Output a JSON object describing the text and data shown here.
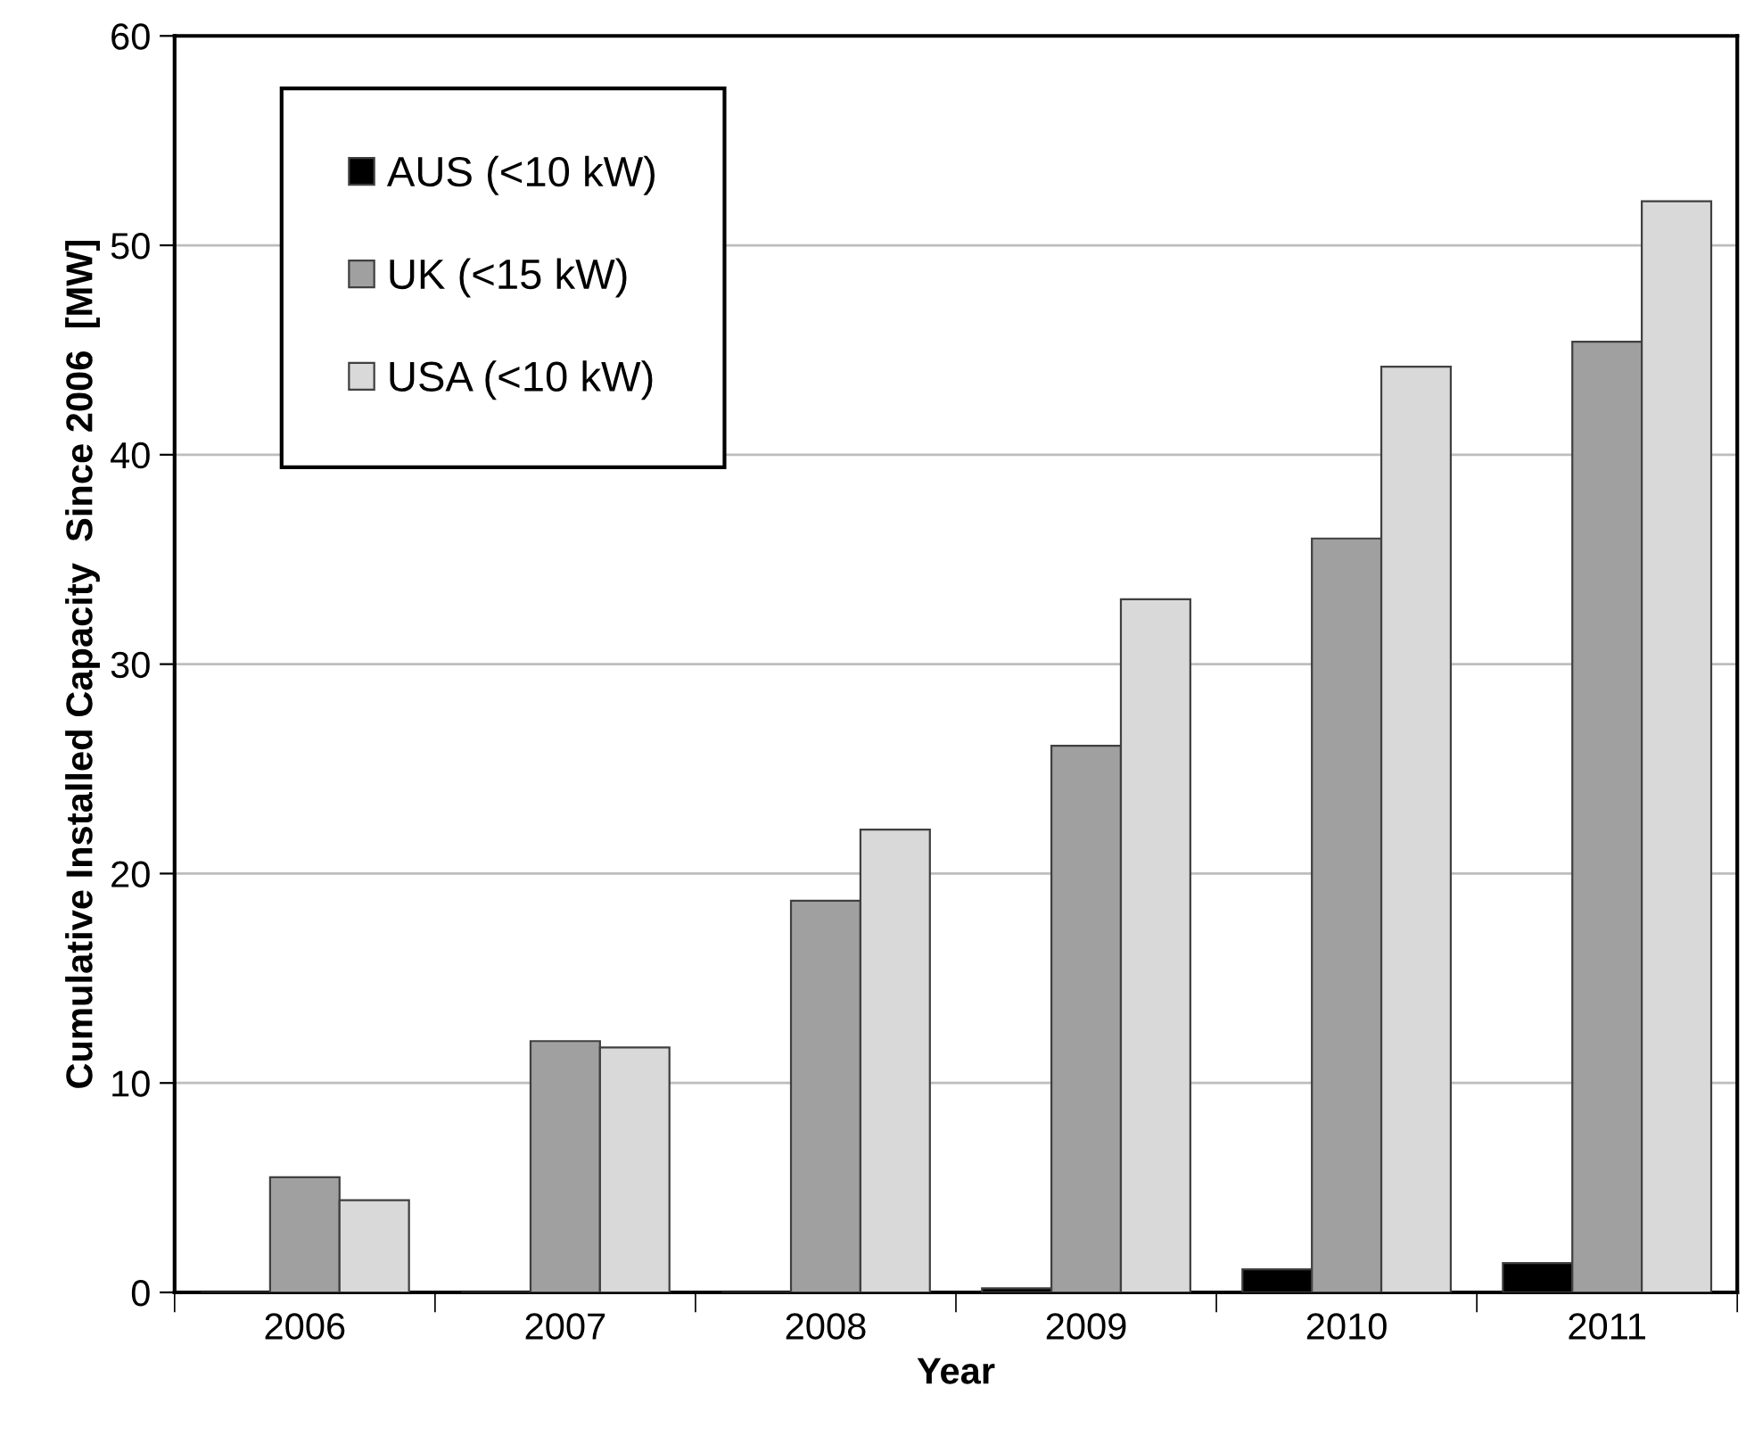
{
  "chart_data": {
    "type": "bar",
    "xlabel": "Year",
    "ylabel": "Cumulative Installed Capacity  Since 2006  [MW]",
    "categories": [
      "2006",
      "2007",
      "2008",
      "2009",
      "2010",
      "2011"
    ],
    "series": [
      {
        "name": "AUS (<10 kW)",
        "color": "#000000",
        "values": [
          null,
          null,
          null,
          0.2,
          1.1,
          1.4
        ]
      },
      {
        "name": "UK (<15 kW)",
        "color": "#a0a0a0",
        "values": [
          5.5,
          12.0,
          18.7,
          26.1,
          36.0,
          45.4
        ]
      },
      {
        "name": "USA (<10 kW)",
        "color": "#d9d9d9",
        "values": [
          4.4,
          11.7,
          22.1,
          33.1,
          44.2,
          52.1
        ]
      }
    ],
    "ylim": [
      0,
      60
    ],
    "yticks": [
      0,
      10,
      20,
      30,
      40,
      50,
      60
    ],
    "grid": "y",
    "legend": "top left"
  }
}
